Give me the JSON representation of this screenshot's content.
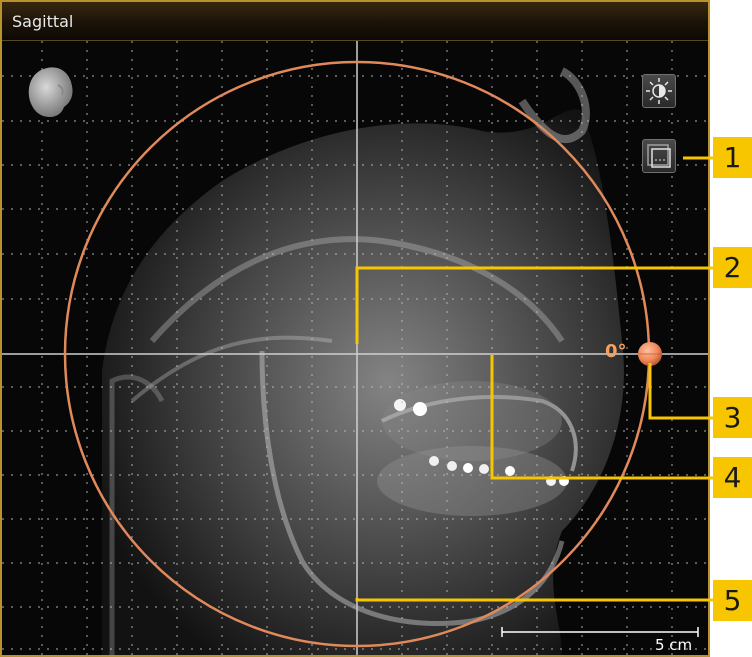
{
  "window": {
    "title": "Sagittal"
  },
  "viewport": {
    "rotation_angle": "0°",
    "scale_bar_label": "5 cm"
  },
  "toolbar": {
    "brightness_icon": "brightness-contrast-icon",
    "panning_icon": "adjust-panoramic-region-icon",
    "head_icon": "3d-head-orientation-icon"
  },
  "callouts": [
    "1",
    "2",
    "3",
    "4",
    "5"
  ],
  "colors": {
    "frame": "#b9922c",
    "rotation_circle": "#e08a5c",
    "rotation_handle": "#f0875a",
    "callout_bg": "#f7c600",
    "crosshair": "#bdbdbd"
  }
}
